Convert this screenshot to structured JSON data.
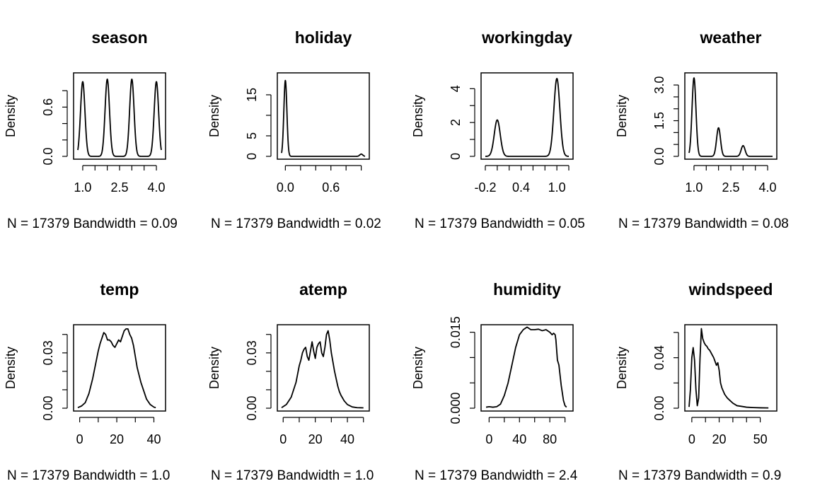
{
  "chart_data": [
    {
      "type": "line",
      "title": "season",
      "ylabel": "Density",
      "xlabel": "N = 17379   Bandwidth = 0.09",
      "xlim": [
        0.8,
        4.2
      ],
      "ylim": [
        0,
        1.0
      ],
      "xticks": [
        1.0,
        1.5,
        2.0,
        2.5,
        3.0,
        3.5,
        4.0
      ],
      "xtick_labels": [
        "1.0",
        "",
        "",
        "2.5",
        "",
        "",
        "4.0"
      ],
      "yticks": [
        0,
        0.2,
        0.4,
        0.6,
        0.8
      ],
      "ytick_labels": [
        "0.0",
        "",
        "",
        "0.6",
        ""
      ],
      "modes": [
        {
          "at": 1,
          "height": 0.91,
          "sd": 0.09
        },
        {
          "at": 2,
          "height": 0.94,
          "sd": 0.09
        },
        {
          "at": 3,
          "height": 0.94,
          "sd": 0.09
        },
        {
          "at": 4,
          "height": 0.91,
          "sd": 0.09
        }
      ]
    },
    {
      "type": "line",
      "title": "holiday",
      "ylabel": "Density",
      "xlabel": "N = 17379   Bandwidth = 0.02",
      "xlim": [
        -0.05,
        1.05
      ],
      "ylim": [
        0,
        20
      ],
      "xticks": [
        0,
        0.2,
        0.4,
        0.6,
        0.8,
        1.0
      ],
      "xtick_labels": [
        "0.0",
        "",
        "",
        "0.6",
        "",
        ""
      ],
      "yticks": [
        0,
        5,
        10,
        15
      ],
      "ytick_labels": [
        "0",
        "5",
        "",
        "15"
      ],
      "modes": [
        {
          "at": 0,
          "height": 18.5,
          "sd": 0.02
        },
        {
          "at": 1,
          "height": 0.55,
          "sd": 0.02
        }
      ]
    },
    {
      "type": "line",
      "title": "workingday",
      "ylabel": "Density",
      "xlabel": "N = 17379   Bandwidth = 0.05",
      "xlim": [
        -0.2,
        1.2
      ],
      "ylim": [
        0,
        4.85
      ],
      "xticks": [
        -0.2,
        0,
        0.2,
        0.4,
        0.6,
        0.8,
        1.0,
        1.2
      ],
      "xtick_labels": [
        "-0.2",
        "",
        "",
        "0.4",
        "",
        "",
        "1.0",
        ""
      ],
      "yticks": [
        0,
        1,
        2,
        3,
        4
      ],
      "ytick_labels": [
        "0",
        "",
        "2",
        "",
        "4"
      ],
      "modes": [
        {
          "at": 0,
          "height": 2.15,
          "sd": 0.05
        },
        {
          "at": 1,
          "height": 4.6,
          "sd": 0.05
        }
      ]
    },
    {
      "type": "line",
      "title": "weather",
      "ylabel": "Density",
      "xlabel": "N = 17379   Bandwidth = 0.08",
      "xlim": [
        0.8,
        4.2
      ],
      "ylim": [
        0,
        3.45
      ],
      "xticks": [
        1.0,
        1.5,
        2.0,
        2.5,
        3.0,
        3.5,
        4.0
      ],
      "xtick_labels": [
        "1.0",
        "",
        "",
        "2.5",
        "",
        "",
        "4.0"
      ],
      "yticks": [
        0,
        0.5,
        1.0,
        1.5,
        2.0,
        2.5,
        3.0
      ],
      "ytick_labels": [
        "0.0",
        "",
        "",
        "1.5",
        "",
        "",
        "3.0"
      ],
      "modes": [
        {
          "at": 1,
          "height": 3.3,
          "sd": 0.08
        },
        {
          "at": 2,
          "height": 1.2,
          "sd": 0.08
        },
        {
          "at": 3,
          "height": 0.45,
          "sd": 0.08
        }
      ]
    },
    {
      "type": "line",
      "title": "temp",
      "ylabel": "Density",
      "xlabel": "N = 17379   Bandwidth = 1.0",
      "xlim": [
        -1,
        44
      ],
      "ylim": [
        0,
        0.0445
      ],
      "xticks": [
        0,
        10,
        20,
        30,
        40
      ],
      "xtick_labels": [
        "0",
        "",
        "20",
        "",
        "40"
      ],
      "yticks": [
        0,
        0.01,
        0.02,
        0.03,
        0.04
      ],
      "ytick_labels": [
        "0.00",
        "",
        "",
        "0.03",
        ""
      ],
      "x": [
        -1,
        1,
        3,
        5,
        7,
        9,
        10,
        11,
        12,
        13,
        14,
        15,
        16,
        17,
        18,
        19,
        20,
        21,
        22,
        23,
        24,
        25,
        26,
        27,
        28,
        29,
        30,
        31,
        32,
        33,
        34,
        36,
        38,
        40,
        41
      ],
      "y": [
        0.0003,
        0.0012,
        0.003,
        0.008,
        0.016,
        0.026,
        0.031,
        0.035,
        0.038,
        0.041,
        0.04,
        0.037,
        0.037,
        0.036,
        0.034,
        0.033,
        0.035,
        0.037,
        0.036,
        0.039,
        0.042,
        0.043,
        0.043,
        0.04,
        0.038,
        0.034,
        0.028,
        0.022,
        0.018,
        0.014,
        0.011,
        0.005,
        0.002,
        0.0006,
        0.0003
      ]
    },
    {
      "type": "line",
      "title": "atemp",
      "ylabel": "Density",
      "xlabel": "N = 17379   Bandwidth = 1.0",
      "xlim": [
        -1,
        51
      ],
      "ylim": [
        0,
        0.0445
      ],
      "xticks": [
        0,
        10,
        20,
        30,
        40,
        50
      ],
      "xtick_labels": [
        "0",
        "",
        "20",
        "",
        "40",
        ""
      ],
      "yticks": [
        0,
        0.01,
        0.02,
        0.03,
        0.04
      ],
      "ytick_labels": [
        "0.00",
        "",
        "",
        "0.03",
        ""
      ],
      "x": [
        -1,
        2,
        5,
        8,
        10,
        11,
        12,
        13,
        14,
        15,
        16,
        17,
        18,
        19,
        20,
        21,
        22,
        23,
        24,
        25,
        26,
        27,
        28,
        29,
        30,
        31,
        32,
        33,
        34,
        35,
        36,
        38,
        40,
        43,
        46,
        50
      ],
      "y": [
        0.0003,
        0.002,
        0.006,
        0.014,
        0.023,
        0.026,
        0.03,
        0.032,
        0.033,
        0.028,
        0.026,
        0.031,
        0.036,
        0.031,
        0.027,
        0.033,
        0.035,
        0.036,
        0.03,
        0.028,
        0.033,
        0.04,
        0.042,
        0.037,
        0.03,
        0.025,
        0.02,
        0.016,
        0.012,
        0.009,
        0.007,
        0.004,
        0.002,
        0.0007,
        0.0003,
        0.0002
      ]
    },
    {
      "type": "line",
      "title": "humidity",
      "ylabel": "Density",
      "xlabel": "N = 17379   Bandwidth = 2.4",
      "xlim": [
        -5,
        105
      ],
      "ylim": [
        0,
        0.0162
      ],
      "xticks": [
        0,
        20,
        40,
        60,
        80,
        100
      ],
      "xtick_labels": [
        "0",
        "",
        "40",
        "",
        "80",
        ""
      ],
      "yticks": [
        0,
        0.005,
        0.01,
        0.015
      ],
      "ytick_labels": [
        "0.000",
        "",
        "",
        "0.015"
      ],
      "x": [
        -4,
        0,
        5,
        10,
        15,
        20,
        25,
        30,
        35,
        40,
        45,
        50,
        55,
        60,
        65,
        70,
        75,
        80,
        83,
        85,
        87,
        88,
        90,
        92,
        95,
        98,
        100,
        102
      ],
      "y": [
        0.0002,
        0.0003,
        0.0002,
        0.0003,
        0.0008,
        0.0025,
        0.005,
        0.0085,
        0.012,
        0.0145,
        0.0155,
        0.016,
        0.0155,
        0.0155,
        0.0156,
        0.0153,
        0.0155,
        0.015,
        0.0145,
        0.0148,
        0.0145,
        0.0135,
        0.0095,
        0.0085,
        0.0045,
        0.0015,
        0.0005,
        0.0002
      ]
    },
    {
      "type": "line",
      "title": "windspeed",
      "ylabel": "Density",
      "xlabel": "N = 17379   Bandwidth = 0.9",
      "xlim": [
        -2,
        59
      ],
      "ylim": [
        0,
        0.065
      ],
      "xticks": [
        0,
        10,
        20,
        30,
        40,
        50
      ],
      "xtick_labels": [
        "0",
        "",
        "20",
        "",
        "",
        "50"
      ],
      "yticks": [
        0,
        0.02,
        0.04,
        0.06
      ],
      "ytick_labels": [
        "0.00",
        "",
        "0.04",
        ""
      ],
      "x": [
        -2,
        -1,
        0,
        1,
        2,
        3,
        4,
        5,
        6,
        7,
        8,
        9,
        10,
        11,
        12,
        13,
        14,
        15,
        16,
        17,
        18,
        19,
        20,
        21,
        22,
        24,
        26,
        28,
        30,
        33,
        36,
        40,
        45,
        50,
        56
      ],
      "y": [
        0.001,
        0.015,
        0.04,
        0.048,
        0.038,
        0.015,
        0.002,
        0.008,
        0.04,
        0.063,
        0.055,
        0.052,
        0.05,
        0.049,
        0.047,
        0.046,
        0.044,
        0.042,
        0.04,
        0.037,
        0.034,
        0.036,
        0.03,
        0.02,
        0.016,
        0.011,
        0.008,
        0.006,
        0.004,
        0.002,
        0.0015,
        0.0008,
        0.0005,
        0.0003,
        0.0002
      ]
    }
  ]
}
